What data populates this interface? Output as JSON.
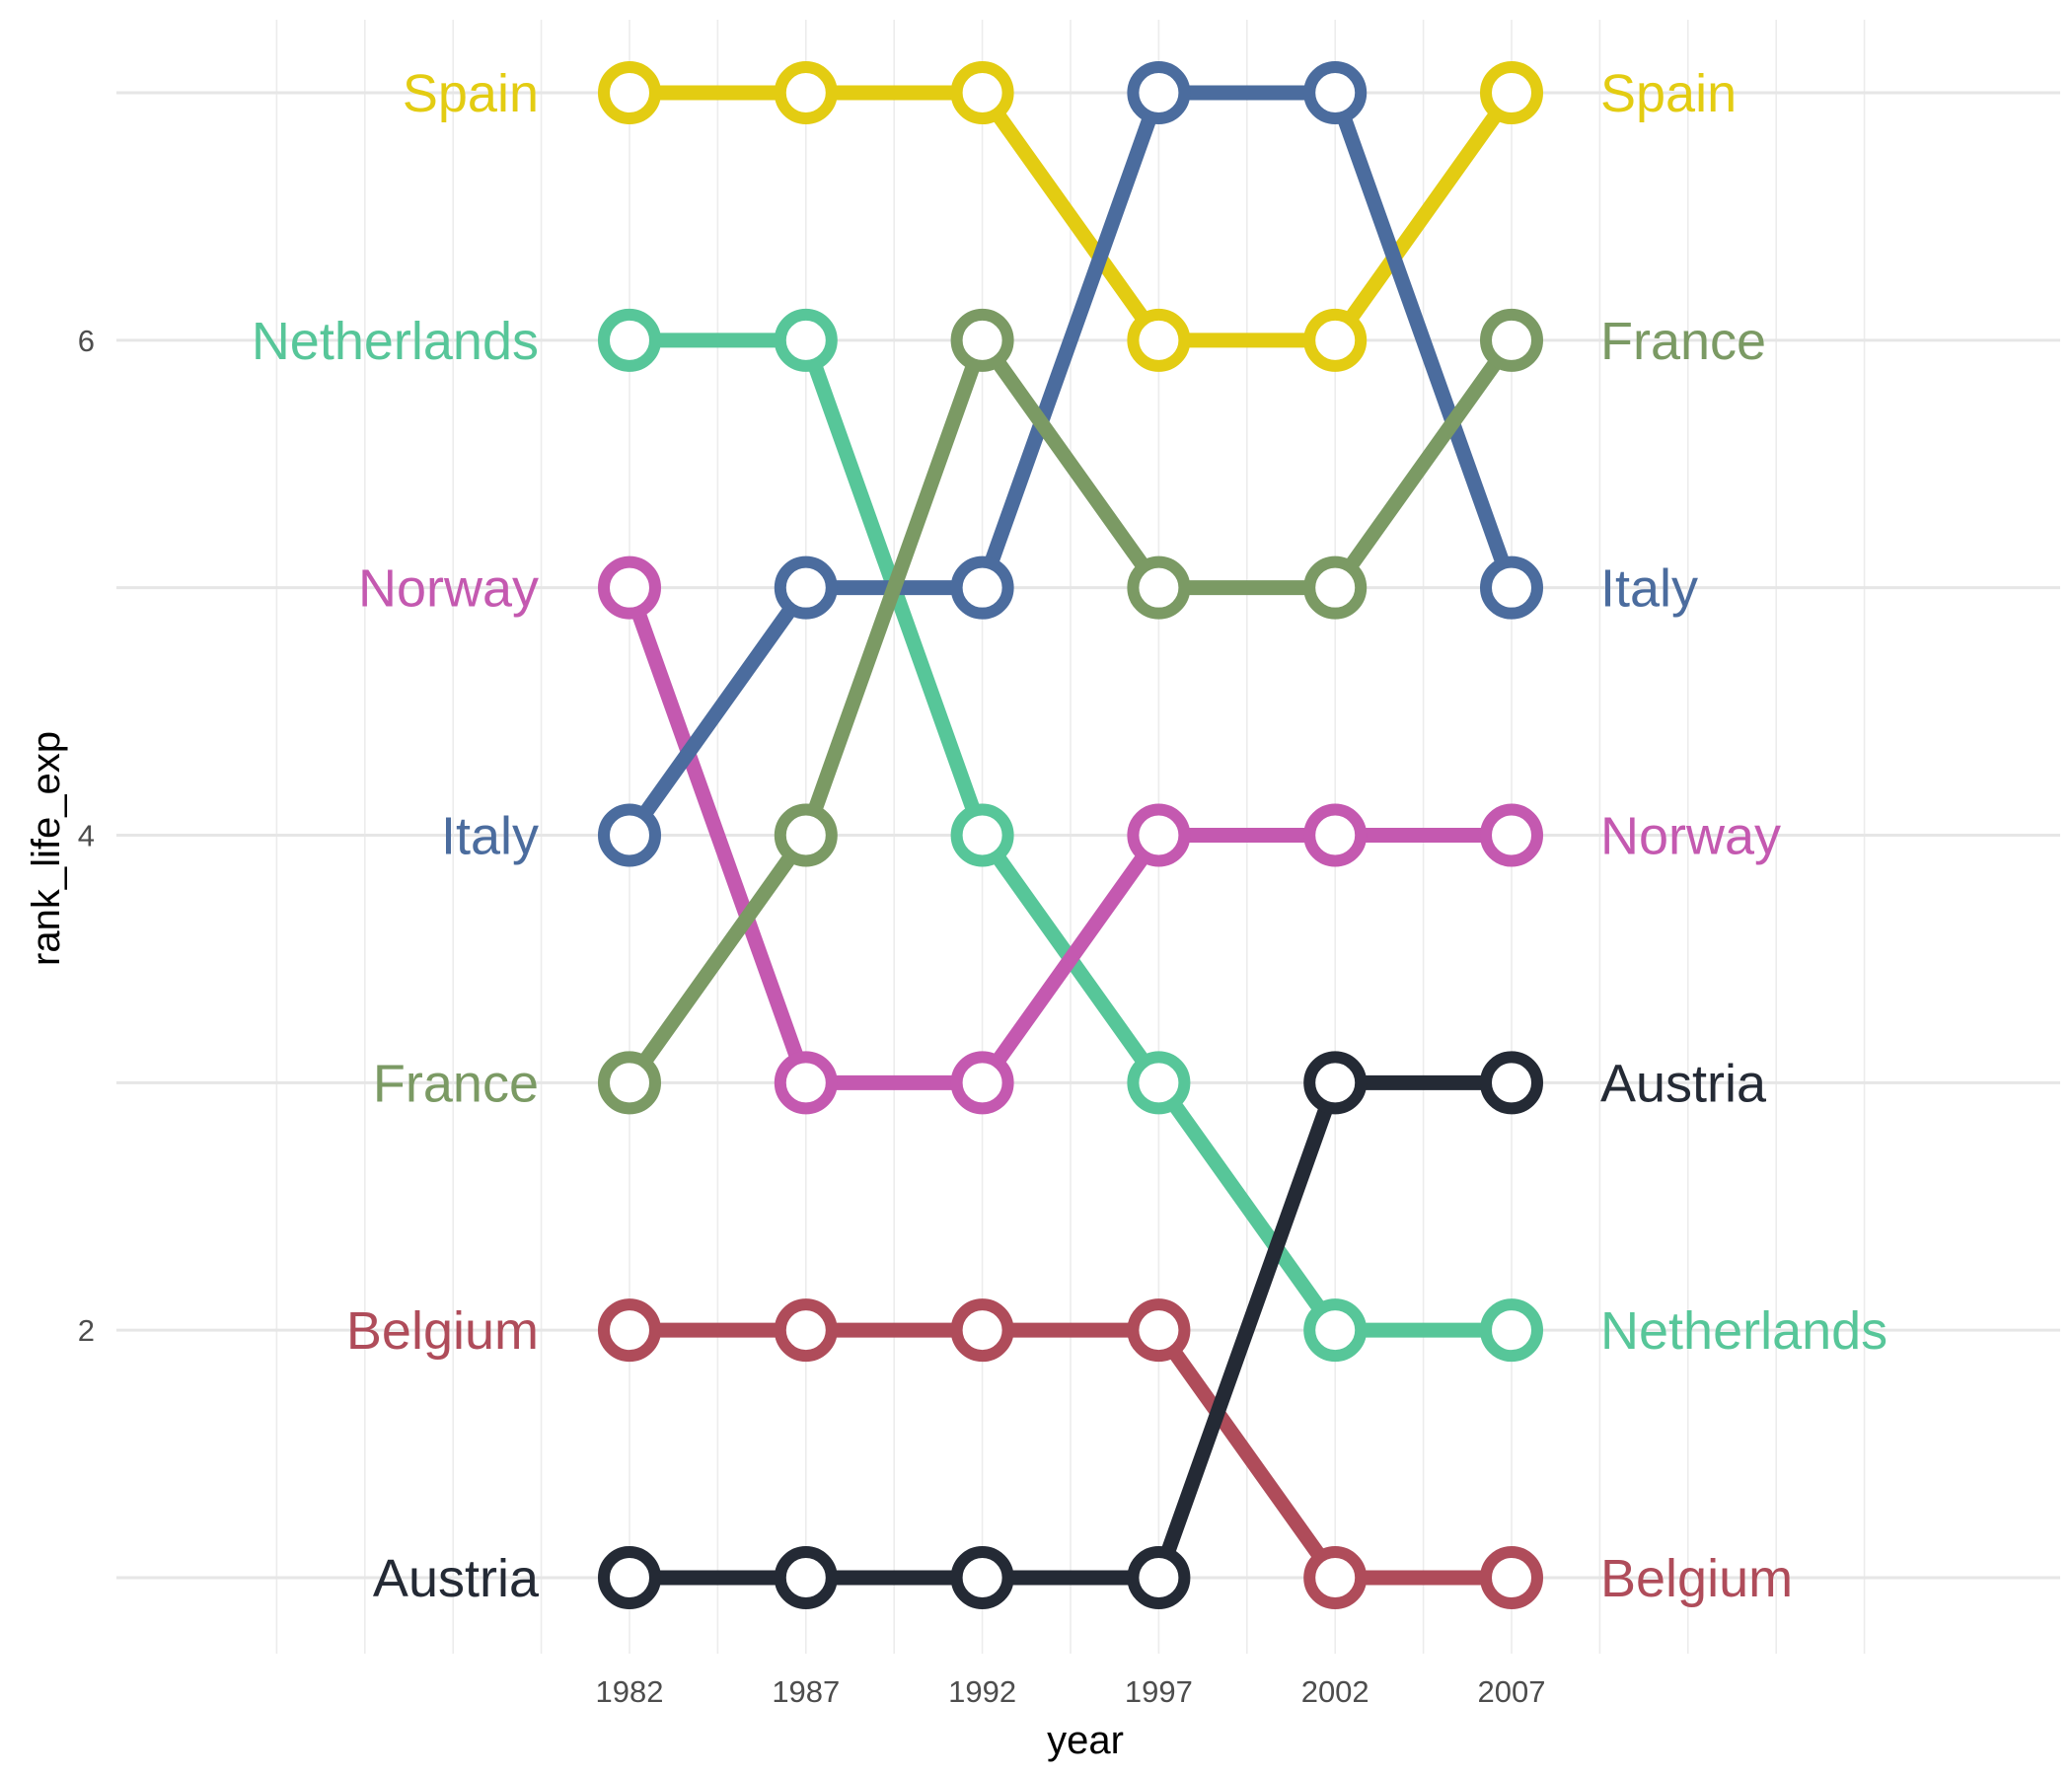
{
  "chart_data": {
    "type": "line",
    "xlabel": "year",
    "ylabel": "rank_life_exp",
    "x": [
      1982,
      1987,
      1992,
      1997,
      2002,
      2007
    ],
    "xticks": [
      "1982",
      "1987",
      "1992",
      "1997",
      "2002",
      "2007"
    ],
    "yticks": [
      2,
      4,
      6
    ],
    "ylim": [
      0.7,
      7.3
    ],
    "grid": true,
    "legend": "none (direct labels at both line ends)",
    "series": [
      {
        "name": "Spain",
        "color": "#E3CC12",
        "values": [
          7,
          7,
          7,
          6,
          6,
          7
        ]
      },
      {
        "name": "Netherlands",
        "color": "#57C699",
        "values": [
          6,
          6,
          4,
          3,
          2,
          2
        ]
      },
      {
        "name": "Norway",
        "color": "#C459B0",
        "values": [
          5,
          3,
          3,
          4,
          4,
          4
        ]
      },
      {
        "name": "Italy",
        "color": "#4B6C9E",
        "values": [
          4,
          5,
          5,
          7,
          7,
          5
        ]
      },
      {
        "name": "France",
        "color": "#7B9A64",
        "values": [
          3,
          4,
          6,
          5,
          5,
          6
        ]
      },
      {
        "name": "Belgium",
        "color": "#AF4C5A",
        "values": [
          2,
          2,
          2,
          2,
          1,
          1
        ]
      },
      {
        "name": "Austria",
        "color": "#242A35",
        "values": [
          1,
          1,
          1,
          1,
          3,
          3
        ]
      }
    ]
  }
}
